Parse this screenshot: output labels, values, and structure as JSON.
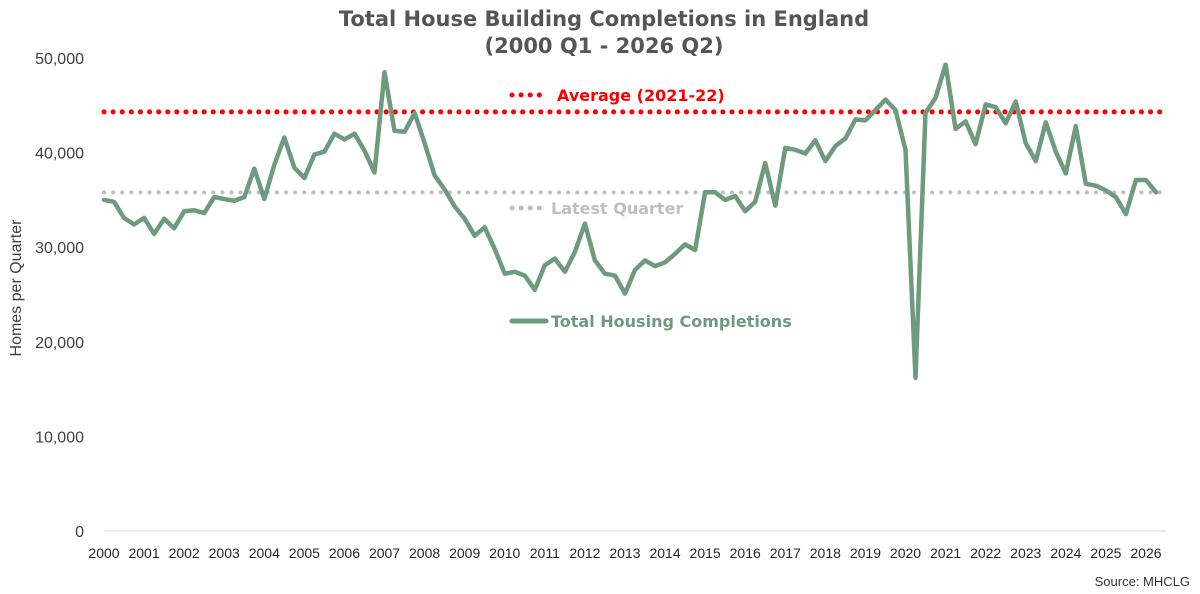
{
  "chart_data": {
    "type": "line",
    "title": "Total House Building Completions in England",
    "subtitle": "(2000 Q1 - 2026 Q2)",
    "ylabel": "Homes per Quarter",
    "xlabel": "",
    "ylim": [
      0,
      50000
    ],
    "yticks": [
      0,
      10000,
      20000,
      30000,
      40000,
      50000
    ],
    "ytick_labels": [
      "0",
      "10,000",
      "20,000",
      "30,000",
      "40,000",
      "50,000"
    ],
    "x_start": 2000,
    "x_end": 2026.5,
    "xtick_labels": [
      "2000",
      "2001",
      "2002",
      "2003",
      "2004",
      "2005",
      "2006",
      "2007",
      "2008",
      "2009",
      "2010",
      "2011",
      "2012",
      "2013",
      "2014",
      "2015",
      "2016",
      "2017",
      "2018",
      "2019",
      "2020",
      "2021",
      "2022",
      "2023",
      "2024",
      "2025",
      "2026"
    ],
    "grid": false,
    "series": [
      {
        "name": "Total Housing Completions",
        "color": "#6e9a7e",
        "x_start": 2000,
        "step": 0.25,
        "values": [
          35000,
          34800,
          33100,
          32400,
          33100,
          31400,
          33000,
          32000,
          33800,
          33900,
          33600,
          35300,
          35100,
          34900,
          35300,
          38300,
          35100,
          38700,
          41600,
          38400,
          37300,
          39800,
          40100,
          42000,
          41400,
          42000,
          40200,
          37900,
          48500,
          42300,
          42200,
          44200,
          41000,
          37600,
          36100,
          34300,
          33000,
          31200,
          32100,
          29800,
          27200,
          27400,
          27000,
          25500,
          28100,
          28800,
          27400,
          29500,
          32500,
          28600,
          27200,
          27000,
          25100,
          27600,
          28600,
          28000,
          28400,
          29300,
          30300,
          29700,
          35800,
          35800,
          35000,
          35400,
          33800,
          34800,
          38900,
          34400,
          40500,
          40300,
          39900,
          41300,
          39100,
          40700,
          41500,
          43500,
          43400,
          44500,
          45600,
          44500,
          40300,
          16200,
          44200,
          45800,
          49300,
          42500,
          43300,
          40900,
          45100,
          44800,
          43100,
          45400,
          41000,
          39100,
          43200,
          40100,
          37800,
          42800,
          36700,
          36500,
          36000,
          35300,
          33500,
          37100,
          37100,
          35800
        ]
      }
    ],
    "reference_lines": [
      {
        "name": "Average (2021-22)",
        "value": 44300,
        "color": "#ff0000"
      },
      {
        "name": "Latest Quarter",
        "value": 35800,
        "color": "#bfbfbf"
      }
    ],
    "source": "Source: MHCLG"
  }
}
